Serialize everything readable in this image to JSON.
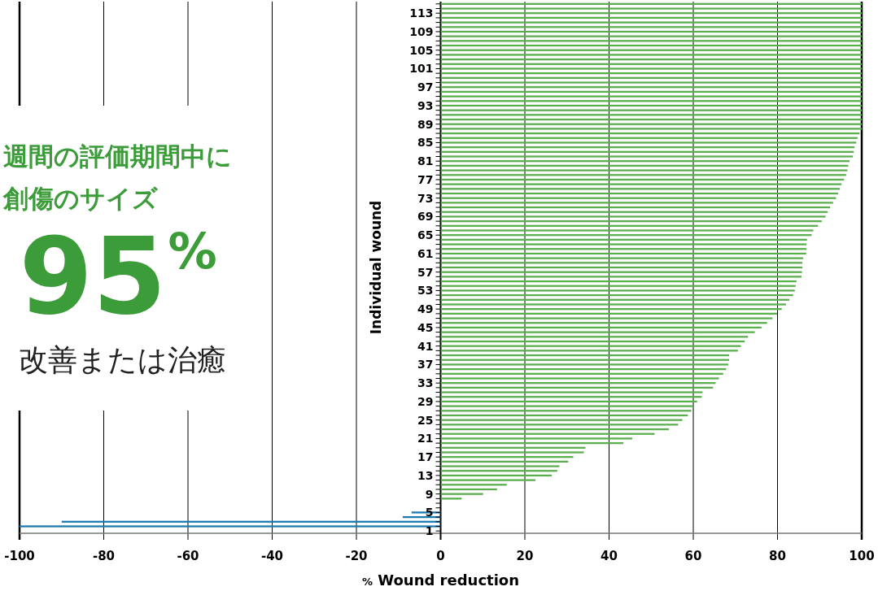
{
  "chart_data": {
    "type": "bar",
    "orientation": "horizontal",
    "xlabel": "% Wound reduction",
    "ylabel": "Individual wound",
    "annotations": [
      "週間の評価期間中に",
      "創傷のサイズ",
      "95$^{%}$",
      "改善または治癒"
    ],
    "xlim": [
      -100,
      100
    ],
    "xticks": [
      -100,
      -80,
      -60,
      -40,
      -20,
      0,
      20,
      40,
      60,
      80,
      100
    ],
    "grid": "x",
    "categories": [
      null,
      null,
      "113",
      null,
      null,
      null,
      "109",
      null,
      null,
      null,
      "105",
      null,
      null,
      null,
      "101",
      null,
      null,
      null,
      "97",
      null,
      null,
      null,
      "93",
      null,
      null,
      null,
      "89",
      null,
      null,
      null,
      "85",
      null,
      null,
      null,
      "81",
      null,
      null,
      null,
      "77",
      null,
      null,
      null,
      "73",
      null,
      null,
      null,
      "69",
      null,
      null,
      null,
      "65",
      null,
      null,
      null,
      "61",
      null,
      null,
      null,
      "57",
      null,
      null,
      null,
      "53",
      null,
      null,
      null,
      "49",
      null,
      null,
      null,
      "45",
      null,
      null,
      null,
      "41",
      null,
      null,
      null,
      "37",
      null,
      null,
      null,
      "33",
      null,
      null,
      null,
      "29",
      null,
      null,
      null,
      "25",
      null,
      null,
      null,
      "21",
      null,
      null,
      null,
      "17",
      null,
      null,
      null,
      "13",
      null,
      null,
      null,
      "9",
      null,
      null,
      null,
      "5",
      null,
      null,
      null,
      "1"
    ],
    "values": [
      100,
      100,
      100,
      100,
      100,
      100,
      100,
      100,
      100,
      100,
      100,
      100,
      100,
      100,
      100,
      100,
      100,
      100,
      100,
      100,
      100,
      100,
      100,
      100,
      100,
      100,
      100,
      100,
      99.5,
      99,
      98.7,
      98.3,
      98.1,
      97.9,
      97.1,
      96.8,
      96.6,
      96.3,
      95.8,
      95.2,
      94.8,
      94.4,
      93.9,
      93.2,
      92.5,
      91.9,
      91.4,
      90.5,
      89.6,
      88.5,
      88.1,
      87,
      86.9,
      86.9,
      86.8,
      86.1,
      85.9,
      85.9,
      85.8,
      85.7,
      84.5,
      84.3,
      84.1,
      83.7,
      82.8,
      82,
      81,
      79.9,
      78.8,
      77.5,
      76.2,
      74.6,
      73,
      72.2,
      71.3,
      70.6,
      68.5,
      68.5,
      68.3,
      67.8,
      67.1,
      66.1,
      65.3,
      64.7,
      62.2,
      62,
      60.9,
      60,
      59.5,
      58.7,
      57.4,
      56.4,
      54.2,
      50.8,
      45.5,
      43.4,
      34.4,
      34,
      31.5,
      30.3,
      28.2,
      27.7,
      26.4,
      22.5,
      15.7,
      13.4,
      10.1,
      5,
      0,
      0,
      -6.9,
      -9,
      -90,
      -100,
      0
    ],
    "colors": [
      "#5aae4e",
      "#5aae4e",
      "#5aae4e",
      "#5aae4e",
      "#5aae4e",
      "#5aae4e",
      "#5aae4e",
      "#5aae4e",
      "#5aae4e",
      "#5aae4e",
      "#5aae4e",
      "#5aae4e",
      "#5aae4e",
      "#5aae4e",
      "#5aae4e",
      "#5aae4e",
      "#5aae4e",
      "#5aae4e",
      "#5aae4e",
      "#5aae4e",
      "#5aae4e",
      "#5aae4e",
      "#5aae4e",
      "#5aae4e",
      "#5aae4e",
      "#5aae4e",
      "#5aae4e",
      "#5aae4e",
      "#5aae4e",
      "#5aae4e",
      "#5aae4e",
      "#5aae4e",
      "#5aae4e",
      "#5aae4e",
      "#5aae4e",
      "#5aae4e",
      "#5aae4e",
      "#5aae4e",
      "#5aae4e",
      "#5aae4e",
      "#5aae4e",
      "#5aae4e",
      "#5aae4e",
      "#5aae4e",
      "#5aae4e",
      "#5aae4e",
      "#5aae4e",
      "#5aae4e",
      "#5aae4e",
      "#5aae4e",
      "#5aae4e",
      "#5aae4e",
      "#5aae4e",
      "#5aae4e",
      "#5aae4e",
      "#5aae4e",
      "#5aae4e",
      "#5aae4e",
      "#5aae4e",
      "#5aae4e",
      "#5aae4e",
      "#5aae4e",
      "#5aae4e",
      "#5aae4e",
      "#5aae4e",
      "#5aae4e",
      "#5aae4e",
      "#5aae4e",
      "#5aae4e",
      "#5aae4e",
      "#5aae4e",
      "#5aae4e",
      "#5aae4e",
      "#5aae4e",
      "#5aae4e",
      "#5aae4e",
      "#5aae4e",
      "#5aae4e",
      "#5aae4e",
      "#5aae4e",
      "#5aae4e",
      "#5aae4e",
      "#5aae4e",
      "#5aae4e",
      "#5aae4e",
      "#5aae4e",
      "#5aae4e",
      "#5aae4e",
      "#5aae4e",
      "#5aae4e",
      "#5aae4e",
      "#5aae4e",
      "#5aae4e",
      "#5aae4e",
      "#5aae4e",
      "#5aae4e",
      "#5aae4e",
      "#5aae4e",
      "#5aae4e",
      "#5aae4e",
      "#5aae4e",
      "#5aae4e",
      "#5aae4e",
      "#5aae4e",
      "#5aae4e",
      "#5aae4e",
      "#5aae4e",
      "#5aae4e",
      "#5aae4e",
      "#5aae4e",
      "#1a7bb0",
      "#1a7bb0",
      "#1a7bb0",
      "#1a7bb0",
      "#1a7bb0"
    ]
  }
}
